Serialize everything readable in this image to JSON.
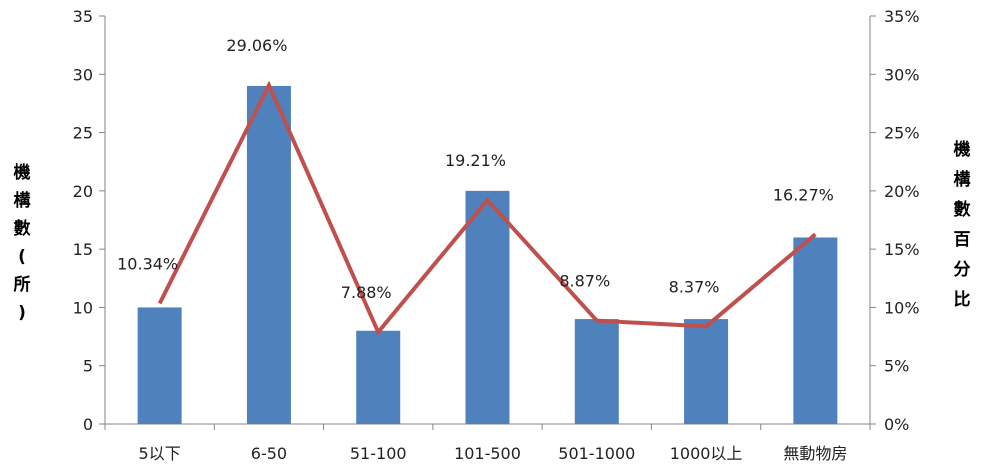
{
  "chart_data": {
    "type": "bar",
    "categories": [
      "5以下",
      "6-50",
      "51-100",
      "101-500",
      "501-1000",
      "1000以上",
      "無動物房"
    ],
    "series": [
      {
        "type": "bar",
        "axis": "left",
        "color": "#4F81BD",
        "values": [
          10,
          29,
          8,
          20,
          9,
          9,
          16
        ]
      },
      {
        "type": "line",
        "axis": "right",
        "color": "#C0504D",
        "values": [
          10.34,
          29.06,
          7.88,
          19.21,
          8.87,
          8.37,
          16.27
        ],
        "labels": [
          "10.34%",
          "29.06%",
          "7.88%",
          "19.21%",
          "8.87%",
          "8.37%",
          "16.27%"
        ]
      }
    ],
    "ylabel_left": "機構數(所)",
    "ylabel_right": "機構數百分比",
    "ylim_left": [
      0,
      35
    ],
    "ylim_right": [
      0,
      35
    ],
    "yticks_left": [
      "0",
      "5",
      "10",
      "15",
      "20",
      "25",
      "30",
      "35"
    ],
    "yticks_right": [
      "0%",
      "5%",
      "10%",
      "15%",
      "20%",
      "25%",
      "30%",
      "35%"
    ],
    "grid": false
  }
}
